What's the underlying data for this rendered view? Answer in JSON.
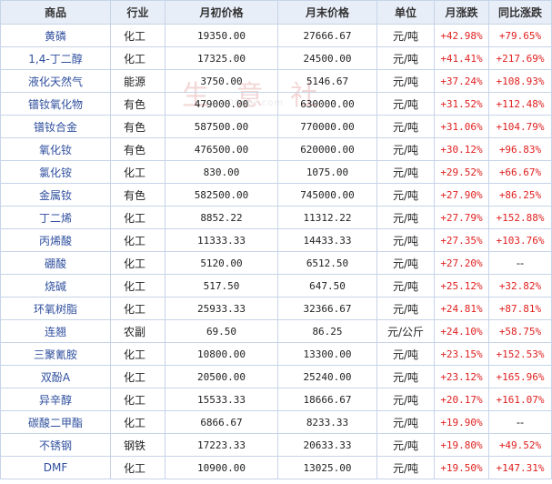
{
  "headers": [
    "商品",
    "行业",
    "月初价格",
    "月末价格",
    "单位",
    "月涨跌",
    "同比涨跌"
  ],
  "watermark": "生 意 社",
  "watermark_url": "100ppi.com",
  "rows": [
    {
      "name": "黄磷",
      "industry": "化工",
      "start": "19350.00",
      "end": "27666.67",
      "unit": "元/吨",
      "mom": "+42.98%",
      "yoy": "+79.65%"
    },
    {
      "name": "1,4-丁二醇",
      "industry": "化工",
      "start": "17325.00",
      "end": "24500.00",
      "unit": "元/吨",
      "mom": "+41.41%",
      "yoy": "+217.69%"
    },
    {
      "name": "液化天然气",
      "industry": "能源",
      "start": "3750.00",
      "end": "5146.67",
      "unit": "元/吨",
      "mom": "+37.24%",
      "yoy": "+108.93%"
    },
    {
      "name": "镨钕氧化物",
      "industry": "有色",
      "start": "479000.00",
      "end": "630000.00",
      "unit": "元/吨",
      "mom": "+31.52%",
      "yoy": "+112.48%"
    },
    {
      "name": "镨钕合金",
      "industry": "有色",
      "start": "587500.00",
      "end": "770000.00",
      "unit": "元/吨",
      "mom": "+31.06%",
      "yoy": "+104.79%"
    },
    {
      "name": "氧化钕",
      "industry": "有色",
      "start": "476500.00",
      "end": "620000.00",
      "unit": "元/吨",
      "mom": "+30.12%",
      "yoy": "+96.83%"
    },
    {
      "name": "氯化铵",
      "industry": "化工",
      "start": "830.00",
      "end": "1075.00",
      "unit": "元/吨",
      "mom": "+29.52%",
      "yoy": "+66.67%"
    },
    {
      "name": "金属钕",
      "industry": "有色",
      "start": "582500.00",
      "end": "745000.00",
      "unit": "元/吨",
      "mom": "+27.90%",
      "yoy": "+86.25%"
    },
    {
      "name": "丁二烯",
      "industry": "化工",
      "start": "8852.22",
      "end": "11312.22",
      "unit": "元/吨",
      "mom": "+27.79%",
      "yoy": "+152.88%"
    },
    {
      "name": "丙烯酸",
      "industry": "化工",
      "start": "11333.33",
      "end": "14433.33",
      "unit": "元/吨",
      "mom": "+27.35%",
      "yoy": "+103.76%"
    },
    {
      "name": "硼酸",
      "industry": "化工",
      "start": "5120.00",
      "end": "6512.50",
      "unit": "元/吨",
      "mom": "+27.20%",
      "yoy": "--"
    },
    {
      "name": "烧碱",
      "industry": "化工",
      "start": "517.50",
      "end": "647.50",
      "unit": "元/吨",
      "mom": "+25.12%",
      "yoy": "+32.82%"
    },
    {
      "name": "环氧树脂",
      "industry": "化工",
      "start": "25933.33",
      "end": "32366.67",
      "unit": "元/吨",
      "mom": "+24.81%",
      "yoy": "+87.81%"
    },
    {
      "name": "连翘",
      "industry": "农副",
      "start": "69.50",
      "end": "86.25",
      "unit": "元/公斤",
      "mom": "+24.10%",
      "yoy": "+58.75%"
    },
    {
      "name": "三聚氰胺",
      "industry": "化工",
      "start": "10800.00",
      "end": "13300.00",
      "unit": "元/吨",
      "mom": "+23.15%",
      "yoy": "+152.53%"
    },
    {
      "name": "双酚A",
      "industry": "化工",
      "start": "20500.00",
      "end": "25240.00",
      "unit": "元/吨",
      "mom": "+23.12%",
      "yoy": "+165.96%"
    },
    {
      "name": "异辛醇",
      "industry": "化工",
      "start": "15533.33",
      "end": "18666.67",
      "unit": "元/吨",
      "mom": "+20.17%",
      "yoy": "+161.07%"
    },
    {
      "name": "碳酸二甲酯",
      "industry": "化工",
      "start": "6866.67",
      "end": "8233.33",
      "unit": "元/吨",
      "mom": "+19.90%",
      "yoy": "--"
    },
    {
      "name": "不锈钢",
      "industry": "钢铁",
      "start": "17223.33",
      "end": "20633.33",
      "unit": "元/吨",
      "mom": "+19.80%",
      "yoy": "+49.52%"
    },
    {
      "name": "DMF",
      "industry": "化工",
      "start": "10900.00",
      "end": "13025.00",
      "unit": "元/吨",
      "mom": "+19.50%",
      "yoy": "+147.31%"
    }
  ]
}
